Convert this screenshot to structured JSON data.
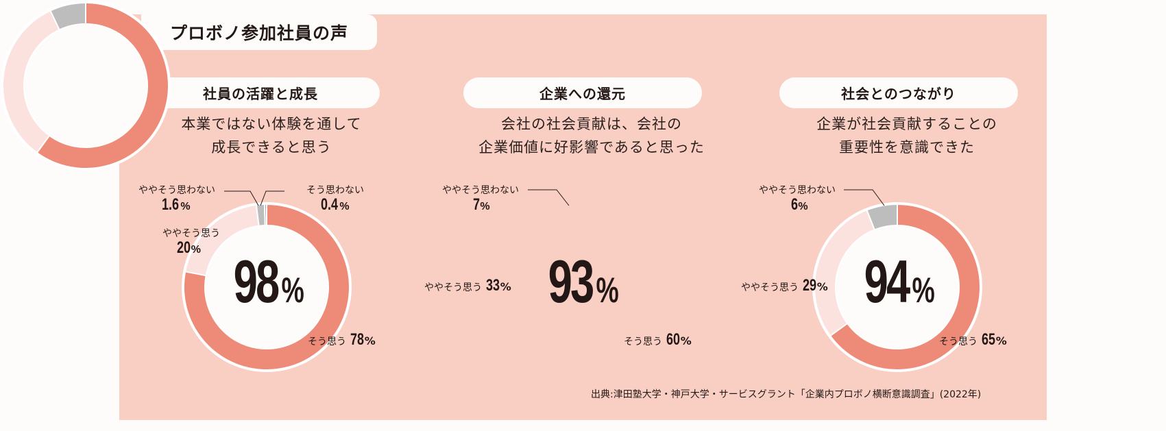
{
  "header": {
    "title": "プロボノ参加社員の声"
  },
  "colors": {
    "panel_bg": "#f9cfc4",
    "strongly_agree": "#ee8b78",
    "somewhat_agree": "#fbe2df",
    "somewhat_disagree": "#bdbdbd",
    "disagree": "#9e9e9e",
    "center_bg": "#fefcfa"
  },
  "sections": [
    {
      "heading": "社員の活躍と成長",
      "question_line1": "本業ではない体験を通して",
      "question_line2": "成長できると思う",
      "center_value": "98",
      "center_unit": "%",
      "labels": {
        "strongly_agree_text": "そう思う",
        "strongly_agree_value": "78",
        "somewhat_agree_text": "ややそう思う",
        "somewhat_agree_value": "20",
        "somewhat_disagree_text": "ややそう思わない",
        "somewhat_disagree_value": "1.6",
        "disagree_text": "そう思わない",
        "disagree_value": "0.4",
        "unit": "%"
      }
    },
    {
      "heading": "企業への還元",
      "question_line1": "会社の社会貢献は、会社の",
      "question_line2": "企業価値に好影響であると思った",
      "center_value": "93",
      "center_unit": "%",
      "labels": {
        "strongly_agree_text": "そう思う",
        "strongly_agree_value": "60",
        "somewhat_agree_text": "ややそう思う",
        "somewhat_agree_value": "33",
        "somewhat_disagree_text": "ややそう思わない",
        "somewhat_disagree_value": "7",
        "unit": "%"
      }
    },
    {
      "heading": "社会とのつながり",
      "question_line1": "企業が社会貢献することの",
      "question_line2": "重要性を意識できた",
      "center_value": "94",
      "center_unit": "%",
      "labels": {
        "strongly_agree_text": "そう思う",
        "strongly_agree_value": "65",
        "somewhat_agree_text": "ややそう思う",
        "somewhat_agree_value": "29",
        "somewhat_disagree_text": "ややそう思わない",
        "somewhat_disagree_value": "6",
        "unit": "%"
      }
    }
  ],
  "source": "出典:津田塾大学・神戸大学・サービスグラント「企業内プロボノ横断意識調査」(2022年)",
  "chart_data": [
    {
      "type": "pie",
      "variant": "donut",
      "title": "社員の活躍と成長 — 本業ではない体験を通して成長できると思う",
      "center_label": "98%",
      "categories": [
        "そう思う",
        "ややそう思う",
        "ややそう思わない",
        "そう思わない"
      ],
      "values": [
        78,
        20,
        1.6,
        0.4
      ],
      "unit": "%"
    },
    {
      "type": "pie",
      "variant": "donut",
      "title": "企業への還元 — 会社の社会貢献は、会社の企業価値に好影響であると思った",
      "center_label": "93%",
      "categories": [
        "そう思う",
        "ややそう思う",
        "ややそう思わない"
      ],
      "values": [
        60,
        33,
        7
      ],
      "unit": "%"
    },
    {
      "type": "pie",
      "variant": "donut",
      "title": "社会とのつながり — 企業が社会貢献することの重要性を意識できた",
      "center_label": "94%",
      "categories": [
        "そう思う",
        "ややそう思う",
        "ややそう思わない"
      ],
      "values": [
        65,
        29,
        6
      ],
      "unit": "%"
    }
  ]
}
